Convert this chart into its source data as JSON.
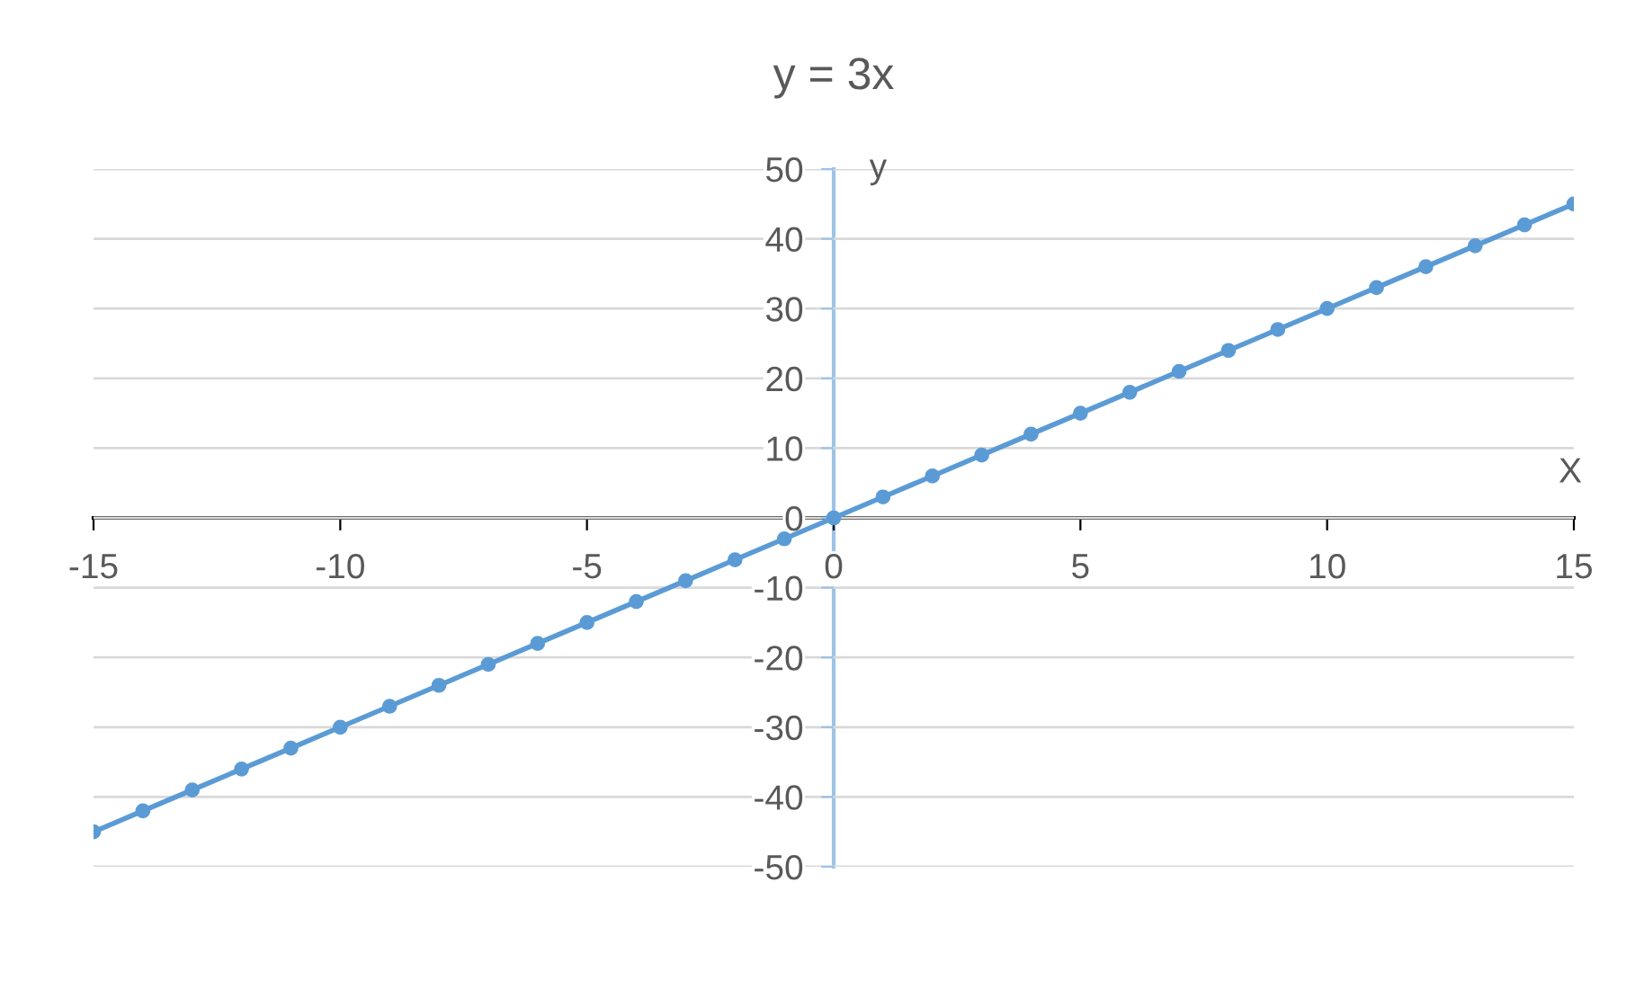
{
  "chart_data": {
    "type": "line",
    "title": "y = 3x",
    "xlabel": "X",
    "ylabel": "y",
    "x": [
      -15,
      -14,
      -13,
      -12,
      -11,
      -10,
      -9,
      -8,
      -7,
      -6,
      -5,
      -4,
      -3,
      -2,
      -1,
      0,
      1,
      2,
      3,
      4,
      5,
      6,
      7,
      8,
      9,
      10,
      11,
      12,
      13,
      14,
      15
    ],
    "series": [
      {
        "color": "#5b9bd5",
        "values": [
          -45,
          -42,
          -39,
          -36,
          -33,
          -30,
          -27,
          -24,
          -21,
          -18,
          -15,
          -12,
          -9,
          -6,
          -3,
          0,
          3,
          6,
          9,
          12,
          15,
          18,
          21,
          24,
          27,
          30,
          33,
          36,
          39,
          42,
          45
        ]
      }
    ],
    "xlim": [
      -15,
      15
    ],
    "ylim": [
      -50,
      50
    ],
    "xticks": [
      -15,
      -10,
      -5,
      0,
      5,
      10,
      15
    ],
    "yticks": [
      -50,
      -40,
      -30,
      -20,
      -10,
      0,
      10,
      20,
      30,
      40,
      50
    ],
    "grid": "y",
    "marker": "circle",
    "line_style": "solid",
    "legend": false
  }
}
